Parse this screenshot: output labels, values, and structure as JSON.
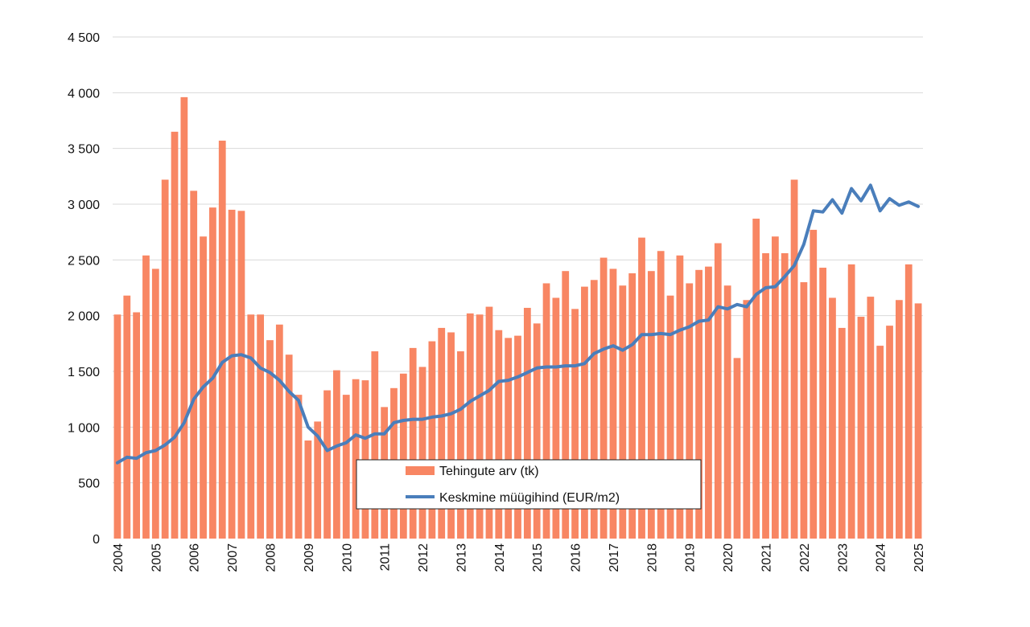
{
  "chart_data": {
    "type": "bar",
    "y_axis": {
      "min": 0,
      "max": 4500,
      "ticks": [
        0,
        500,
        1000,
        1500,
        2000,
        2500,
        3000,
        3500,
        4000,
        4500
      ],
      "tick_labels": [
        "0",
        "500",
        "1 000",
        "1 500",
        "2 000",
        "2 500",
        "3 000",
        "3 500",
        "4 000",
        "4 500"
      ]
    },
    "x_axis": {
      "year_labels": [
        "2004",
        "2005",
        "2006",
        "2007",
        "2008",
        "2009",
        "2010",
        "2011",
        "2012",
        "2013",
        "2014",
        "2015",
        "2016",
        "2017",
        "2018",
        "2019",
        "2020",
        "2021",
        "2022",
        "2023",
        "2024",
        "2025"
      ]
    },
    "grid": true,
    "legend_position": "bottom-center",
    "colors": {
      "bars": "#F88663",
      "line": "#4A7EBB"
    },
    "series": [
      {
        "name": "Tehingute arv (tk)",
        "type": "bar",
        "values": [
          2010,
          2180,
          2030,
          2540,
          2420,
          3220,
          3650,
          3960,
          3120,
          2710,
          2970,
          3570,
          2950,
          2940,
          2010,
          2010,
          1780,
          1920,
          1650,
          1290,
          880,
          1050,
          1330,
          1510,
          1290,
          1430,
          1420,
          1680,
          1180,
          1350,
          1480,
          1710,
          1540,
          1770,
          1890,
          1850,
          1680,
          2020,
          2010,
          2080,
          1870,
          1800,
          1820,
          2070,
          1930,
          2290,
          2160,
          2400,
          2060,
          2260,
          2320,
          2520,
          2420,
          2270,
          2380,
          2700,
          2400,
          2580,
          2180,
          2540,
          2290,
          2410,
          2440,
          2650,
          2270,
          1620,
          2140,
          2870,
          2560,
          2710,
          2560,
          3220,
          2300,
          2770,
          2430,
          2160,
          1890,
          2460,
          1990,
          2170,
          1730,
          1910,
          2140,
          2460,
          2110
        ]
      },
      {
        "name": "Keskmine müügihind (EUR/m2)",
        "type": "line",
        "values": [
          680,
          730,
          720,
          770,
          790,
          840,
          910,
          1040,
          1250,
          1360,
          1440,
          1580,
          1640,
          1650,
          1620,
          1530,
          1490,
          1420,
          1320,
          1240,
          1000,
          920,
          790,
          830,
          860,
          930,
          900,
          940,
          940,
          1040,
          1060,
          1070,
          1070,
          1090,
          1100,
          1120,
          1160,
          1230,
          1280,
          1330,
          1410,
          1420,
          1450,
          1490,
          1530,
          1540,
          1540,
          1550,
          1550,
          1570,
          1660,
          1700,
          1730,
          1690,
          1740,
          1830,
          1830,
          1840,
          1830,
          1870,
          1900,
          1950,
          1960,
          2080,
          2060,
          2100,
          2080,
          2190,
          2250,
          2260,
          2350,
          2450,
          2640,
          2940,
          2930,
          3040,
          2920,
          3140,
          3030,
          3170,
          2940,
          3050,
          2990,
          3020,
          2980
        ]
      }
    ]
  }
}
